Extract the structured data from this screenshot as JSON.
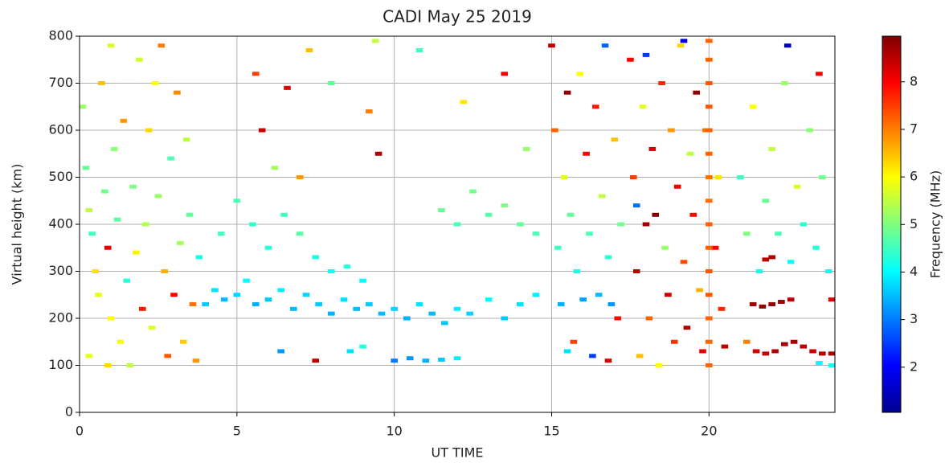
{
  "chart_data": {
    "type": "scatter",
    "title": "CADI May 25 2019",
    "x_label": "UT TIME",
    "y_label": "Virtual height (km)",
    "colorbar_label": "Frequency (MHz)",
    "colormap": "jet",
    "grid": true,
    "xlim": [
      0,
      24
    ],
    "xticks": [
      0,
      5,
      10,
      15,
      20
    ],
    "ylim": [
      0,
      800
    ],
    "yticks": [
      0,
      100,
      200,
      300,
      400,
      500,
      600,
      700,
      800
    ],
    "clim": [
      1.05,
      8.96
    ],
    "cticks": [
      2,
      3,
      4,
      5,
      6,
      7,
      8
    ],
    "x": [
      0.1,
      0.2,
      0.3,
      0.4,
      0.5,
      0.6,
      0.7,
      0.8,
      0.9,
      1.0,
      1.1,
      1.2,
      1.3,
      1.4,
      1.5,
      1.6,
      1.7,
      1.8,
      1.9,
      2.0,
      2.1,
      2.2,
      2.3,
      2.5,
      2.6,
      2.7,
      2.8,
      2.9,
      3.0,
      3.1,
      3.2,
      3.3,
      3.5,
      3.6,
      3.7,
      3.8,
      0.3,
      1.0,
      2.4,
      0.9,
      3.4,
      4.0,
      4.3,
      4.6,
      5.0,
      5.3,
      5.6,
      6.0,
      6.4,
      6.8,
      7.2,
      7.6,
      8.0,
      8.4,
      8.8,
      9.2,
      9.6,
      10.0,
      10.4,
      10.8,
      11.2,
      11.6,
      12.0,
      12.4,
      13.0,
      13.5,
      14.0,
      14.5,
      4.5,
      5.0,
      5.5,
      6.0,
      6.5,
      7.0,
      7.5,
      8.0,
      8.5,
      9.0,
      11.5,
      12.0,
      12.5,
      13.0,
      13.5,
      14.0,
      14.5,
      6.4,
      7.5,
      8.6,
      10.0,
      10.5,
      11.0,
      11.5,
      12.0,
      9.0,
      7.3,
      8.0,
      9.4,
      6.6,
      5.6,
      9.2,
      12.2,
      13.5,
      14.2,
      10.8,
      5.8,
      7.0,
      9.5,
      6.2,
      15.0,
      15.1,
      15.2,
      15.3,
      15.4,
      15.5,
      15.6,
      15.7,
      15.8,
      15.9,
      16.0,
      16.1,
      16.2,
      16.3,
      16.4,
      16.5,
      16.6,
      16.7,
      16.8,
      16.9,
      17.0,
      17.1,
      17.2,
      15.5,
      16.8,
      17.5,
      17.6,
      17.7,
      17.8,
      17.9,
      18.0,
      18.1,
      18.2,
      18.3,
      18.4,
      18.5,
      18.6,
      18.7,
      18.8,
      18.9,
      19.0,
      19.1,
      19.2,
      19.3,
      19.4,
      19.5,
      19.6,
      19.7,
      19.8,
      19.9,
      20.2,
      20.3,
      20.4,
      20.5,
      18.0,
      19.2,
      17.7,
      20.0,
      20.0,
      20.0,
      20.0,
      20.0,
      20.0,
      20.0,
      20.0,
      20.0,
      20.0,
      20.0,
      20.0,
      20.0,
      20.0,
      20.0,
      21.0,
      21.2,
      21.4,
      21.6,
      21.8,
      22.0,
      22.2,
      22.4,
      22.6,
      22.8,
      23.0,
      23.2,
      23.4,
      23.6,
      23.8,
      22.5,
      23.5,
      21.2,
      21.8,
      22.0,
      21.4,
      21.7,
      22.0,
      22.3,
      22.6,
      21.5,
      21.8,
      22.1,
      22.4,
      22.7,
      23.0,
      23.3,
      23.6,
      23.9,
      23.9,
      23.5,
      23.9
    ],
    "y": [
      650,
      520,
      430,
      380,
      300,
      250,
      700,
      470,
      350,
      200,
      560,
      410,
      150,
      620,
      280,
      100,
      480,
      340,
      750,
      220,
      400,
      600,
      180,
      460,
      780,
      300,
      120,
      540,
      250,
      680,
      360,
      150,
      420,
      230,
      110,
      330,
      120,
      780,
      700,
      100,
      580,
      230,
      260,
      240,
      250,
      280,
      230,
      240,
      260,
      220,
      250,
      230,
      210,
      240,
      220,
      230,
      210,
      220,
      200,
      230,
      210,
      190,
      220,
      210,
      240,
      200,
      230,
      250,
      380,
      450,
      400,
      350,
      420,
      380,
      330,
      300,
      310,
      280,
      430,
      400,
      470,
      420,
      440,
      400,
      380,
      130,
      110,
      130,
      110,
      115,
      110,
      112,
      115,
      140,
      770,
      700,
      790,
      690,
      720,
      640,
      660,
      720,
      560,
      770,
      600,
      500,
      550,
      520,
      780,
      600,
      350,
      230,
      500,
      680,
      420,
      150,
      300,
      720,
      240,
      550,
      380,
      120,
      650,
      250,
      460,
      780,
      330,
      230,
      580,
      200,
      400,
      130,
      110,
      750,
      500,
      300,
      120,
      650,
      400,
      200,
      560,
      420,
      100,
      700,
      350,
      250,
      600,
      150,
      480,
      780,
      320,
      180,
      550,
      420,
      680,
      260,
      130,
      600,
      350,
      500,
      220,
      140,
      760,
      790,
      440,
      100,
      150,
      200,
      250,
      300,
      350,
      400,
      450,
      500,
      550,
      600,
      650,
      700,
      750,
      790,
      500,
      380,
      650,
      300,
      450,
      560,
      380,
      700,
      320,
      480,
      400,
      600,
      350,
      500,
      300,
      780,
      720,
      150,
      325,
      330,
      230,
      225,
      230,
      235,
      240,
      130,
      125,
      130,
      145,
      150,
      140,
      130,
      125,
      125,
      240,
      105,
      100
    ],
    "values": [
      5.2,
      4.8,
      5.5,
      4.5,
      6.2,
      5.8,
      6.5,
      4.9,
      8.2,
      6.0,
      5.1,
      4.7,
      5.9,
      6.8,
      4.3,
      5.5,
      5.0,
      6.1,
      5.6,
      7.8,
      5.4,
      6.3,
      5.7,
      5.2,
      7.0,
      6.6,
      7.3,
      4.6,
      8.0,
      6.9,
      5.3,
      6.4,
      4.8,
      7.1,
      6.8,
      4.2,
      5.8,
      5.7,
      6.0,
      6.3,
      5.5,
      3.6,
      3.8,
      3.5,
      3.7,
      4.0,
      3.4,
      3.6,
      3.9,
      3.5,
      3.7,
      3.6,
      3.4,
      3.8,
      3.5,
      3.6,
      3.5,
      3.7,
      3.4,
      3.8,
      3.5,
      3.6,
      3.9,
      3.7,
      4.0,
      3.6,
      3.8,
      3.9,
      4.5,
      4.6,
      4.4,
      4.3,
      4.5,
      4.7,
      4.2,
      4.1,
      4.3,
      4.0,
      4.8,
      4.6,
      4.9,
      4.7,
      5.0,
      4.8,
      4.6,
      3.2,
      8.5,
      3.8,
      3.0,
      3.2,
      3.4,
      3.6,
      3.9,
      4.3,
      6.5,
      4.8,
      5.5,
      8.2,
      7.5,
      7.0,
      6.2,
      8.0,
      5.2,
      4.5,
      8.4,
      6.8,
      8.6,
      5.3,
      8.5,
      7.2,
      4.5,
      3.4,
      5.8,
      8.8,
      4.8,
      7.5,
      4.2,
      6.0,
      3.3,
      8.0,
      4.6,
      2.5,
      7.8,
      3.5,
      5.5,
      2.8,
      4.4,
      3.2,
      6.5,
      7.9,
      4.9,
      3.8,
      8.3,
      8.0,
      7.5,
      8.5,
      6.5,
      5.8,
      8.7,
      7.2,
      8.3,
      8.9,
      6.0,
      7.7,
      5.2,
      8.4,
      6.8,
      7.6,
      8.1,
      6.3,
      7.4,
      8.6,
      5.5,
      7.9,
      8.8,
      6.6,
      8.2,
      7.1,
      8.0,
      6.2,
      7.7,
      8.5,
      2.5,
      1.8,
      2.9,
      7.2,
      7.2,
      7.2,
      7.3,
      7.3,
      7.2,
      7.2,
      7.1,
      7.1,
      7.2,
      7.2,
      7.3,
      7.3,
      7.2,
      7.2,
      4.5,
      5.0,
      6.0,
      4.2,
      4.8,
      5.5,
      4.6,
      5.2,
      4.0,
      5.7,
      4.4,
      5.1,
      4.3,
      4.9,
      4.1,
      1.5,
      8.0,
      7.0,
      8.5,
      8.6,
      8.7,
      8.8,
      8.8,
      8.7,
      8.5,
      8.3,
      8.4,
      8.6,
      8.7,
      8.6,
      8.5,
      8.4,
      8.5,
      8.6,
      8.2,
      4.0,
      4.1
    ]
  }
}
